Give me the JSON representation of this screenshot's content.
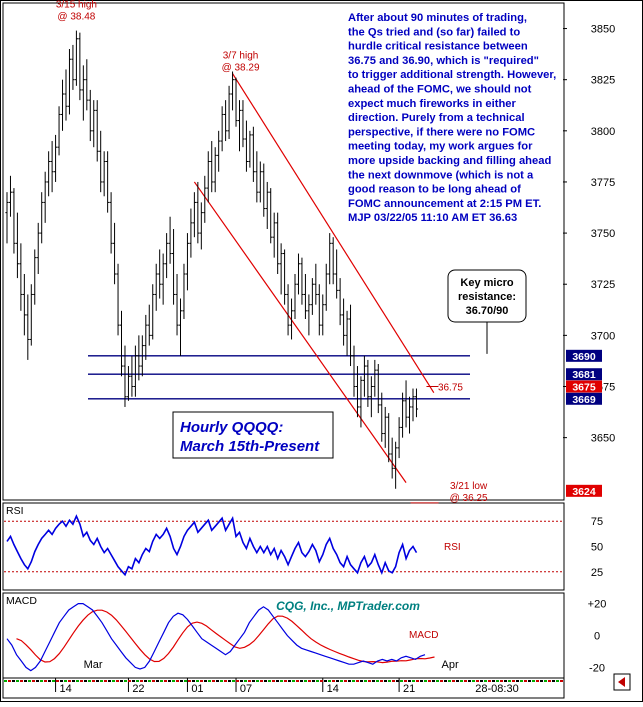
{
  "chart_data": {
    "type": "ohlc",
    "instrument": "Hourly QQQQ:",
    "period": "March 15th-Present",
    "copyright": "CQG, Inc., MPTrader.com",
    "timestamp_tag": "28-08:30",
    "main_panel": {
      "y_ticks": [
        3650,
        3675,
        3700,
        3725,
        3750,
        3775,
        3800,
        3825,
        3850
      ],
      "ylim": [
        3620,
        3862
      ],
      "price_tags": [
        {
          "label": "3690",
          "value": 3690,
          "bg": "#000080"
        },
        {
          "label": "3681",
          "value": 3681,
          "bg": "#000080"
        },
        {
          "label": "3675",
          "value": 3675,
          "bg": "#e00000"
        },
        {
          "label": "3669",
          "value": 3669,
          "bg": "#000080"
        },
        {
          "label": "3624",
          "value": 3624,
          "bg": "#e00000"
        }
      ],
      "horizontal_lines": [
        3690,
        3681,
        3669
      ],
      "channel_upper": [
        {
          "bar": 65,
          "price": 3828
        },
        {
          "bar": 123,
          "price": 3672
        }
      ],
      "channel_lower": [
        {
          "bar": 54,
          "price": 3775
        },
        {
          "bar": 115,
          "price": 3628
        }
      ],
      "annotations": [
        {
          "line1": "3/15 high",
          "line2": "@ 38.48",
          "bar": 20,
          "price": 3849
        },
        {
          "line1": "3/7 high",
          "line2": "@ 38.29",
          "bar": 65,
          "price": 3829
        },
        {
          "line1": "3/21 low",
          "line2": "@ 36.25",
          "bar": 114,
          "price": 3624
        },
        {
          "line1": "36.75",
          "bar": 118,
          "price": 3675
        }
      ],
      "callout": {
        "line1": "Key micro",
        "line2": "resistance:",
        "line3": "36.70/90"
      },
      "commentary": [
        "After about 90 minutes of trading,",
        "the Qs tried and (so far) failed to",
        "hurdle critical resistance between",
        "36.75 and 36.90, which is \"required\"",
        "to trigger additional strength. However,",
        "ahead of the FOMC,  we should not",
        "expect much fireworks in either",
        "direction.  Purely from a technical",
        "perspective, if there were no FOMC",
        "meeting today, my work argues for",
        "more upside backing and filling ahead",
        "the next downmove (which is not a",
        "good reason to be long ahead of",
        "FOMC announcement at 2:15 PM ET.",
        "MJP  03/22/05  11:10 AM ET  36.63"
      ],
      "bars": [
        {
          "o": 3760,
          "h": 3770,
          "l": 3745,
          "c": 3765
        },
        {
          "o": 3765,
          "h": 3778,
          "l": 3758,
          "c": 3770
        },
        {
          "o": 3770,
          "h": 3772,
          "l": 3740,
          "c": 3745
        },
        {
          "o": 3745,
          "h": 3760,
          "l": 3728,
          "c": 3735
        },
        {
          "o": 3735,
          "h": 3745,
          "l": 3712,
          "c": 3720
        },
        {
          "o": 3720,
          "h": 3730,
          "l": 3700,
          "c": 3710
        },
        {
          "o": 3710,
          "h": 3720,
          "l": 3688,
          "c": 3698
        },
        {
          "o": 3698,
          "h": 3725,
          "l": 3695,
          "c": 3720
        },
        {
          "o": 3720,
          "h": 3742,
          "l": 3715,
          "c": 3738
        },
        {
          "o": 3738,
          "h": 3755,
          "l": 3730,
          "c": 3750
        },
        {
          "o": 3750,
          "h": 3770,
          "l": 3745,
          "c": 3765
        },
        {
          "o": 3765,
          "h": 3780,
          "l": 3755,
          "c": 3775
        },
        {
          "o": 3775,
          "h": 3790,
          "l": 3768,
          "c": 3785
        },
        {
          "o": 3785,
          "h": 3795,
          "l": 3770,
          "c": 3780
        },
        {
          "o": 3780,
          "h": 3798,
          "l": 3775,
          "c": 3792
        },
        {
          "o": 3792,
          "h": 3812,
          "l": 3788,
          "c": 3808
        },
        {
          "o": 3808,
          "h": 3825,
          "l": 3800,
          "c": 3818
        },
        {
          "o": 3818,
          "h": 3830,
          "l": 3805,
          "c": 3812
        },
        {
          "o": 3812,
          "h": 3840,
          "l": 3808,
          "c": 3835
        },
        {
          "o": 3835,
          "h": 3842,
          "l": 3820,
          "c": 3825
        },
        {
          "o": 3825,
          "h": 3849,
          "l": 3822,
          "c": 3845
        },
        {
          "o": 3845,
          "h": 3848,
          "l": 3815,
          "c": 3820
        },
        {
          "o": 3820,
          "h": 3832,
          "l": 3805,
          "c": 3825
        },
        {
          "o": 3825,
          "h": 3835,
          "l": 3810,
          "c": 3815
        },
        {
          "o": 3815,
          "h": 3820,
          "l": 3795,
          "c": 3800
        },
        {
          "o": 3800,
          "h": 3815,
          "l": 3792,
          "c": 3810
        },
        {
          "o": 3810,
          "h": 3815,
          "l": 3785,
          "c": 3790
        },
        {
          "o": 3790,
          "h": 3800,
          "l": 3770,
          "c": 3775
        },
        {
          "o": 3775,
          "h": 3790,
          "l": 3768,
          "c": 3785
        },
        {
          "o": 3785,
          "h": 3790,
          "l": 3760,
          "c": 3765
        },
        {
          "o": 3765,
          "h": 3770,
          "l": 3740,
          "c": 3745
        },
        {
          "o": 3745,
          "h": 3755,
          "l": 3725,
          "c": 3730
        },
        {
          "o": 3730,
          "h": 3735,
          "l": 3700,
          "c": 3705
        },
        {
          "o": 3705,
          "h": 3712,
          "l": 3680,
          "c": 3685
        },
        {
          "o": 3685,
          "h": 3695,
          "l": 3665,
          "c": 3670
        },
        {
          "o": 3670,
          "h": 3685,
          "l": 3668,
          "c": 3680
        },
        {
          "o": 3680,
          "h": 3690,
          "l": 3670,
          "c": 3675
        },
        {
          "o": 3675,
          "h": 3695,
          "l": 3670,
          "c": 3690
        },
        {
          "o": 3690,
          "h": 3700,
          "l": 3678,
          "c": 3685
        },
        {
          "o": 3685,
          "h": 3700,
          "l": 3680,
          "c": 3695
        },
        {
          "o": 3695,
          "h": 3710,
          "l": 3688,
          "c": 3705
        },
        {
          "o": 3705,
          "h": 3715,
          "l": 3695,
          "c": 3700
        },
        {
          "o": 3700,
          "h": 3725,
          "l": 3698,
          "c": 3720
        },
        {
          "o": 3720,
          "h": 3735,
          "l": 3712,
          "c": 3730
        },
        {
          "o": 3730,
          "h": 3742,
          "l": 3718,
          "c": 3725
        },
        {
          "o": 3725,
          "h": 3740,
          "l": 3715,
          "c": 3735
        },
        {
          "o": 3735,
          "h": 3750,
          "l": 3728,
          "c": 3745
        },
        {
          "o": 3745,
          "h": 3758,
          "l": 3735,
          "c": 3740
        },
        {
          "o": 3740,
          "h": 3752,
          "l": 3715,
          "c": 3720
        },
        {
          "o": 3720,
          "h": 3730,
          "l": 3700,
          "c": 3705
        },
        {
          "o": 3705,
          "h": 3718,
          "l": 3690,
          "c": 3712
        },
        {
          "o": 3712,
          "h": 3735,
          "l": 3708,
          "c": 3730
        },
        {
          "o": 3730,
          "h": 3750,
          "l": 3722,
          "c": 3745
        },
        {
          "o": 3745,
          "h": 3762,
          "l": 3738,
          "c": 3755
        },
        {
          "o": 3755,
          "h": 3770,
          "l": 3748,
          "c": 3765
        },
        {
          "o": 3765,
          "h": 3775,
          "l": 3745,
          "c": 3750
        },
        {
          "o": 3750,
          "h": 3765,
          "l": 3742,
          "c": 3760
        },
        {
          "o": 3760,
          "h": 3778,
          "l": 3755,
          "c": 3772
        },
        {
          "o": 3772,
          "h": 3790,
          "l": 3765,
          "c": 3785
        },
        {
          "o": 3785,
          "h": 3795,
          "l": 3770,
          "c": 3775
        },
        {
          "o": 3775,
          "h": 3792,
          "l": 3770,
          "c": 3788
        },
        {
          "o": 3788,
          "h": 3800,
          "l": 3780,
          "c": 3795
        },
        {
          "o": 3795,
          "h": 3812,
          "l": 3790,
          "c": 3808
        },
        {
          "o": 3808,
          "h": 3815,
          "l": 3795,
          "c": 3800
        },
        {
          "o": 3800,
          "h": 3822,
          "l": 3796,
          "c": 3818
        },
        {
          "o": 3818,
          "h": 3829,
          "l": 3810,
          "c": 3825
        },
        {
          "o": 3825,
          "h": 3826,
          "l": 3802,
          "c": 3805
        },
        {
          "o": 3805,
          "h": 3815,
          "l": 3790,
          "c": 3810
        },
        {
          "o": 3810,
          "h": 3815,
          "l": 3792,
          "c": 3796
        },
        {
          "o": 3796,
          "h": 3805,
          "l": 3780,
          "c": 3785
        },
        {
          "o": 3785,
          "h": 3800,
          "l": 3782,
          "c": 3798
        },
        {
          "o": 3798,
          "h": 3802,
          "l": 3775,
          "c": 3780
        },
        {
          "o": 3780,
          "h": 3790,
          "l": 3765,
          "c": 3770
        },
        {
          "o": 3770,
          "h": 3785,
          "l": 3765,
          "c": 3780
        },
        {
          "o": 3780,
          "h": 3784,
          "l": 3758,
          "c": 3762
        },
        {
          "o": 3762,
          "h": 3775,
          "l": 3752,
          "c": 3770
        },
        {
          "o": 3770,
          "h": 3772,
          "l": 3745,
          "c": 3748
        },
        {
          "o": 3748,
          "h": 3760,
          "l": 3738,
          "c": 3755
        },
        {
          "o": 3755,
          "h": 3760,
          "l": 3730,
          "c": 3735
        },
        {
          "o": 3735,
          "h": 3745,
          "l": 3720,
          "c": 3740
        },
        {
          "o": 3740,
          "h": 3742,
          "l": 3715,
          "c": 3720
        },
        {
          "o": 3720,
          "h": 3725,
          "l": 3700,
          "c": 3705
        },
        {
          "o": 3705,
          "h": 3718,
          "l": 3698,
          "c": 3712
        },
        {
          "o": 3712,
          "h": 3730,
          "l": 3708,
          "c": 3725
        },
        {
          "o": 3725,
          "h": 3740,
          "l": 3720,
          "c": 3735
        },
        {
          "o": 3735,
          "h": 3738,
          "l": 3715,
          "c": 3720
        },
        {
          "o": 3720,
          "h": 3730,
          "l": 3708,
          "c": 3712
        },
        {
          "o": 3712,
          "h": 3720,
          "l": 3700,
          "c": 3715
        },
        {
          "o": 3715,
          "h": 3728,
          "l": 3710,
          "c": 3725
        },
        {
          "o": 3725,
          "h": 3735,
          "l": 3715,
          "c": 3720
        },
        {
          "o": 3720,
          "h": 3725,
          "l": 3700,
          "c": 3705
        },
        {
          "o": 3705,
          "h": 3720,
          "l": 3700,
          "c": 3715
        },
        {
          "o": 3715,
          "h": 3735,
          "l": 3712,
          "c": 3730
        },
        {
          "o": 3730,
          "h": 3750,
          "l": 3725,
          "c": 3745
        },
        {
          "o": 3745,
          "h": 3748,
          "l": 3725,
          "c": 3730
        },
        {
          "o": 3730,
          "h": 3742,
          "l": 3718,
          "c": 3722
        },
        {
          "o": 3722,
          "h": 3728,
          "l": 3705,
          "c": 3710
        },
        {
          "o": 3710,
          "h": 3718,
          "l": 3695,
          "c": 3700
        },
        {
          "o": 3700,
          "h": 3712,
          "l": 3690,
          "c": 3708
        },
        {
          "o": 3708,
          "h": 3715,
          "l": 3685,
          "c": 3690
        },
        {
          "o": 3690,
          "h": 3695,
          "l": 3670,
          "c": 3675
        },
        {
          "o": 3675,
          "h": 3685,
          "l": 3660,
          "c": 3665
        },
        {
          "o": 3665,
          "h": 3680,
          "l": 3655,
          "c": 3678
        },
        {
          "o": 3678,
          "h": 3690,
          "l": 3670,
          "c": 3685
        },
        {
          "o": 3685,
          "h": 3688,
          "l": 3665,
          "c": 3670
        },
        {
          "o": 3670,
          "h": 3680,
          "l": 3660,
          "c": 3675
        },
        {
          "o": 3675,
          "h": 3688,
          "l": 3670,
          "c": 3683
        },
        {
          "o": 3683,
          "h": 3686,
          "l": 3662,
          "c": 3666
        },
        {
          "o": 3666,
          "h": 3672,
          "l": 3648,
          "c": 3652
        },
        {
          "o": 3652,
          "h": 3665,
          "l": 3645,
          "c": 3660
        },
        {
          "o": 3660,
          "h": 3662,
          "l": 3638,
          "c": 3642
        },
        {
          "o": 3642,
          "h": 3650,
          "l": 3630,
          "c": 3635
        },
        {
          "o": 3635,
          "h": 3648,
          "l": 3625,
          "c": 3645
        },
        {
          "o": 3645,
          "h": 3660,
          "l": 3640,
          "c": 3655
        },
        {
          "o": 3655,
          "h": 3672,
          "l": 3650,
          "c": 3668
        },
        {
          "o": 3668,
          "h": 3678,
          "l": 3655,
          "c": 3660
        },
        {
          "o": 3660,
          "h": 3670,
          "l": 3652,
          "c": 3665
        },
        {
          "o": 3665,
          "h": 3674,
          "l": 3658,
          "c": 3670
        },
        {
          "o": 3670,
          "h": 3674,
          "l": 3660,
          "c": 3664
        }
      ]
    },
    "rsi_panel": {
      "label": "RSI",
      "series_label": "RSI",
      "ylim": [
        8,
        92
      ],
      "y_ticks": [
        25,
        50,
        75
      ],
      "dashed_levels": [
        25,
        75
      ],
      "values": [
        55,
        60,
        52,
        45,
        38,
        32,
        28,
        35,
        45,
        52,
        58,
        62,
        66,
        62,
        68,
        72,
        75,
        70,
        76,
        72,
        80,
        72,
        60,
        64,
        56,
        52,
        58,
        50,
        44,
        48,
        42,
        36,
        30,
        26,
        22,
        30,
        28,
        38,
        34,
        42,
        48,
        45,
        55,
        62,
        58,
        62,
        68,
        60,
        48,
        42,
        50,
        60,
        66,
        70,
        74,
        64,
        68,
        72,
        76,
        66,
        70,
        74,
        78,
        66,
        72,
        78,
        60,
        64,
        54,
        48,
        58,
        50,
        44,
        50,
        44,
        50,
        42,
        48,
        38,
        46,
        40,
        32,
        40,
        48,
        54,
        44,
        40,
        45,
        52,
        46,
        35,
        42,
        52,
        58,
        48,
        42,
        34,
        30,
        40,
        32,
        28,
        24,
        34,
        40,
        30,
        34,
        42,
        32,
        24,
        34,
        26,
        24,
        30,
        44,
        52,
        38,
        46,
        50,
        44
      ]
    },
    "macd_panel": {
      "label": "MACD",
      "series_label": "MACD",
      "ylim": [
        -26,
        26
      ],
      "y_ticks": [
        {
          "value": 20,
          "label": "+20"
        },
        {
          "value": 0,
          "label": "0"
        },
        {
          "value": -20,
          "label": "-20"
        }
      ],
      "macd": [
        -2,
        -6,
        -12,
        -16,
        -20,
        -22,
        -20,
        -16,
        -10,
        -4,
        2,
        8,
        12,
        16,
        18,
        20,
        20,
        18,
        16,
        12,
        8,
        3,
        -2,
        -6,
        -10,
        -14,
        -17,
        -20,
        -21,
        -20,
        -16,
        -10,
        -4,
        2,
        8,
        12,
        14,
        13,
        10,
        6,
        2,
        -2,
        -4,
        -6,
        -8,
        -10,
        -12,
        -10,
        -6,
        -2,
        2,
        8,
        12,
        16,
        18,
        16,
        12,
        8,
        4,
        0,
        -3,
        -6,
        -8,
        -9,
        -10,
        -11,
        -12,
        -13,
        -14,
        -15,
        -16,
        -17,
        -18,
        -18,
        -17,
        -16,
        -17,
        -18,
        -16,
        -15,
        -16,
        -15,
        -16,
        -14,
        -13,
        -14,
        -15,
        -13,
        -12
      ]
    },
    "x_axis": {
      "month_labels": [
        {
          "label": "Mar",
          "bar": 41
        },
        {
          "label": "Apr",
          "bar": 211
        }
      ],
      "day_labels": [
        {
          "label": "14",
          "bar": 14
        },
        {
          "label": "22",
          "bar": 35
        },
        {
          "label": "01",
          "bar": 52
        },
        {
          "label": "07",
          "bar": 66
        },
        {
          "label": "14",
          "bar": 91
        },
        {
          "label": "21",
          "bar": 113
        }
      ],
      "num_bars": 240
    }
  }
}
